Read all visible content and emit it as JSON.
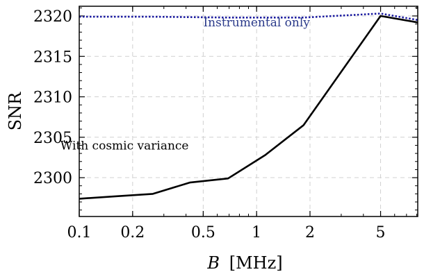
{
  "chart_data": {
    "type": "line",
    "title": "",
    "xlabel_var": "B",
    "xlabel_unit": "[MHz]",
    "ylabel": "SNR",
    "x_scale": "log",
    "xlim": [
      0.1,
      8.1
    ],
    "ylim": [
      2295.2,
      2321.2
    ],
    "grid": true,
    "x_ticks": [
      {
        "value": 0.1,
        "label": "0.1"
      },
      {
        "value": 0.2,
        "label": "0.2"
      },
      {
        "value": 0.5,
        "label": "0.5"
      },
      {
        "value": 1,
        "label": "1"
      },
      {
        "value": 2,
        "label": "2"
      },
      {
        "value": 5,
        "label": "5"
      }
    ],
    "y_ticks": [
      {
        "value": 2300,
        "label": "2300"
      },
      {
        "value": 2305,
        "label": "2305"
      },
      {
        "value": 2310,
        "label": "2310"
      },
      {
        "value": 2315,
        "label": "2315"
      },
      {
        "value": 2320,
        "label": "2320"
      }
    ],
    "series": [
      {
        "name": "With cosmic variance",
        "color": "#000000",
        "style": "solid",
        "x": [
          0.1,
          0.16,
          0.26,
          0.42,
          0.69,
          1.12,
          1.84,
          5.0,
          8.1
        ],
        "y": [
          2297.4,
          2297.7,
          2298.0,
          2299.4,
          2299.9,
          2302.8,
          2306.5,
          2320.0,
          2319.2
        ]
      },
      {
        "name": "Instrumental only",
        "color": "#1a1aa0",
        "style": "dotted",
        "x": [
          0.1,
          0.26,
          0.69,
          1.84,
          5.0,
          8.1
        ],
        "y": [
          2319.9,
          2319.9,
          2319.8,
          2319.8,
          2320.3,
          2319.5
        ]
      }
    ],
    "annotations": [
      {
        "text": "Instrumental only",
        "x": 1.0,
        "y": 2318.7,
        "color": "#2a3a8a"
      },
      {
        "text": "With cosmic variance",
        "x": 0.18,
        "y": 2303.5,
        "color": "#000000"
      }
    ]
  }
}
